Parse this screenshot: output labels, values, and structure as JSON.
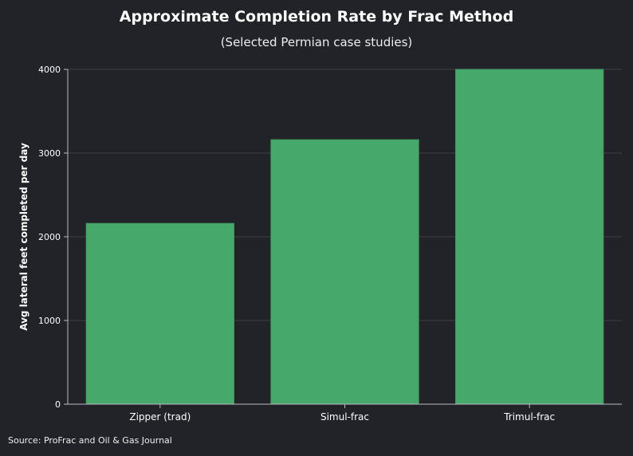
{
  "chart_data": {
    "type": "bar",
    "title": "Approximate Completion Rate by Frac Method",
    "subtitle": "(Selected Permian case studies)",
    "xlabel": "",
    "ylabel": "Avg lateral feet completed per day",
    "categories": [
      "Zipper (trad)",
      "Simul-frac",
      "Trimul-frac"
    ],
    "values": [
      2160,
      3160,
      4000
    ],
    "ylim": [
      0,
      4000
    ],
    "yticks": [
      0,
      1000,
      2000,
      3000,
      4000
    ],
    "grid": true,
    "legend": "none",
    "bar_color": "#46a96b",
    "source": "Source: ProFrac and Oil & Gas Journal"
  }
}
